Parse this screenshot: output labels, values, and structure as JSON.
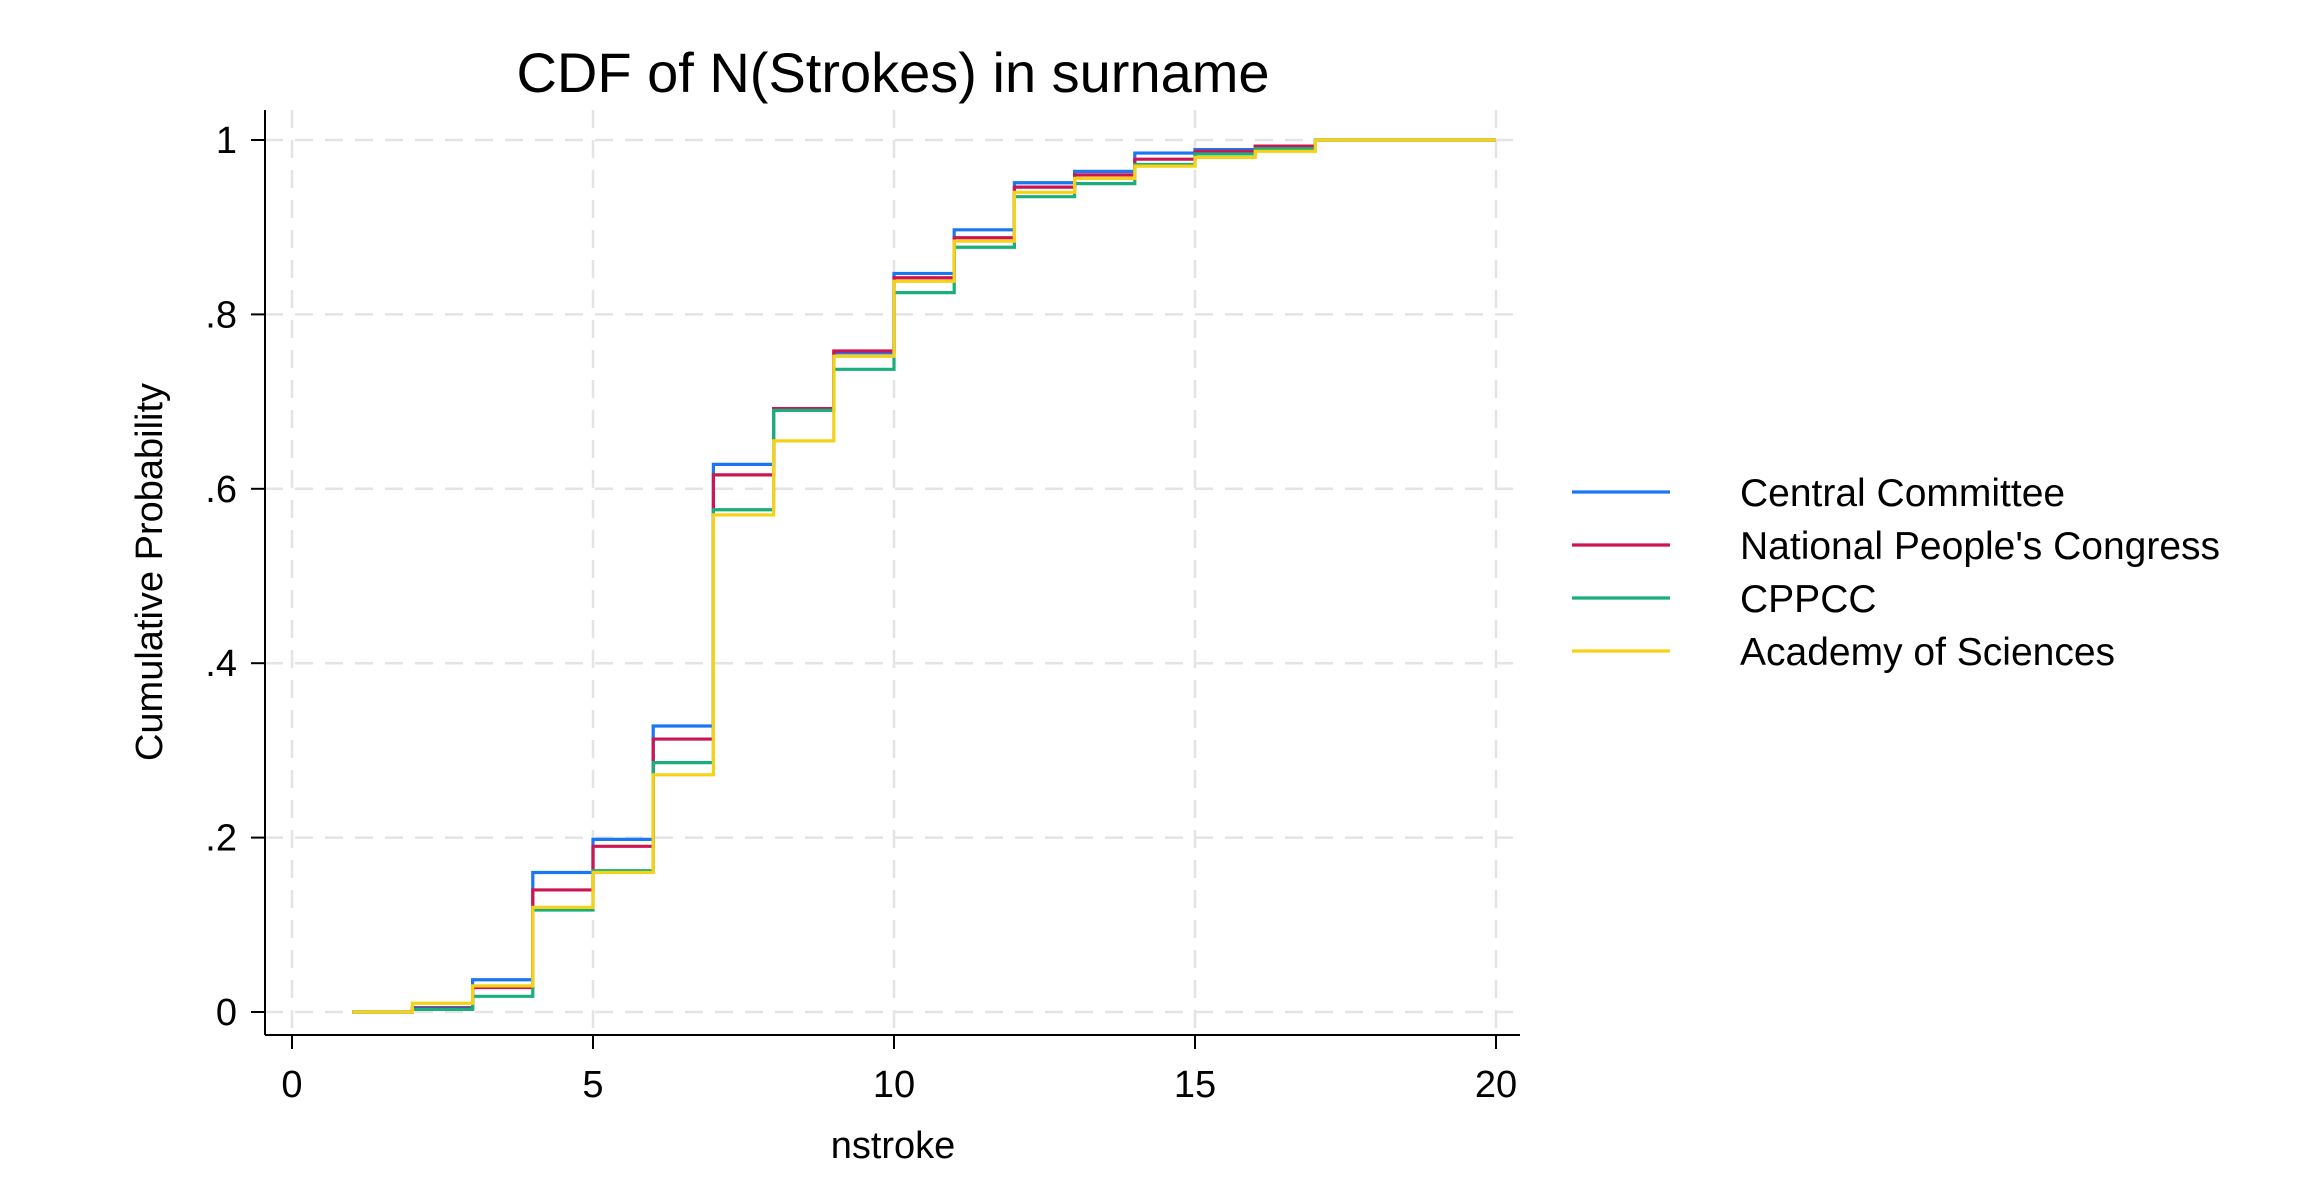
{
  "chart_data": {
    "type": "line",
    "step": true,
    "title": "CDF of N(Strokes) in surname",
    "xlabel": "nstroke",
    "ylabel": "Cumulative Probability",
    "xlim": [
      0,
      20
    ],
    "ylim": [
      0,
      1
    ],
    "xticks": [
      0,
      5,
      10,
      15,
      20
    ],
    "xtick_labels": [
      "0",
      "5",
      "10",
      "15",
      "20"
    ],
    "yticks": [
      0,
      0.2,
      0.4,
      0.6,
      0.8,
      1
    ],
    "ytick_labels": [
      "0",
      ".2",
      ".4",
      ".6",
      ".8",
      "1"
    ],
    "grid": true,
    "legend_position": "right",
    "series": [
      {
        "name": "Central Committee",
        "color": "#1a76f2",
        "x": [
          1,
          2,
          3,
          4,
          5,
          6,
          7,
          8,
          9,
          10,
          11,
          12,
          13,
          14,
          15,
          16,
          17,
          18,
          19,
          20
        ],
        "y": [
          0.0,
          0.005,
          0.037,
          0.16,
          0.198,
          0.328,
          0.628,
          0.69,
          0.756,
          0.847,
          0.897,
          0.951,
          0.964,
          0.985,
          0.989,
          0.993,
          1.0,
          1.0,
          1.0,
          1.0
        ]
      },
      {
        "name": "National People's Congress",
        "color": "#cc1553",
        "x": [
          1,
          2,
          3,
          4,
          5,
          6,
          7,
          8,
          9,
          10,
          11,
          12,
          13,
          14,
          15,
          16,
          17,
          18,
          19,
          20
        ],
        "y": [
          0.0,
          0.004,
          0.028,
          0.14,
          0.19,
          0.313,
          0.616,
          0.692,
          0.758,
          0.842,
          0.888,
          0.946,
          0.96,
          0.978,
          0.987,
          0.993,
          1.0,
          1.0,
          1.0,
          1.0
        ]
      },
      {
        "name": "CPPCC",
        "color": "#1aae7a",
        "x": [
          1,
          2,
          3,
          4,
          5,
          6,
          7,
          8,
          9,
          10,
          11,
          12,
          13,
          14,
          15,
          16,
          17,
          18,
          19,
          20
        ],
        "y": [
          0.0,
          0.003,
          0.018,
          0.117,
          0.162,
          0.286,
          0.576,
          0.69,
          0.737,
          0.825,
          0.877,
          0.935,
          0.95,
          0.972,
          0.984,
          0.99,
          1.0,
          1.0,
          1.0,
          1.0
        ]
      },
      {
        "name": "Academy of Sciences",
        "color": "#f5d216",
        "x": [
          1,
          2,
          3,
          4,
          5,
          6,
          7,
          8,
          9,
          10,
          11,
          12,
          13,
          14,
          15,
          16,
          17,
          18,
          19,
          20
        ],
        "y": [
          0.0,
          0.01,
          0.03,
          0.12,
          0.16,
          0.272,
          0.57,
          0.655,
          0.752,
          0.838,
          0.884,
          0.94,
          0.956,
          0.97,
          0.98,
          0.987,
          1.0,
          1.0,
          1.0,
          1.0
        ]
      }
    ]
  }
}
